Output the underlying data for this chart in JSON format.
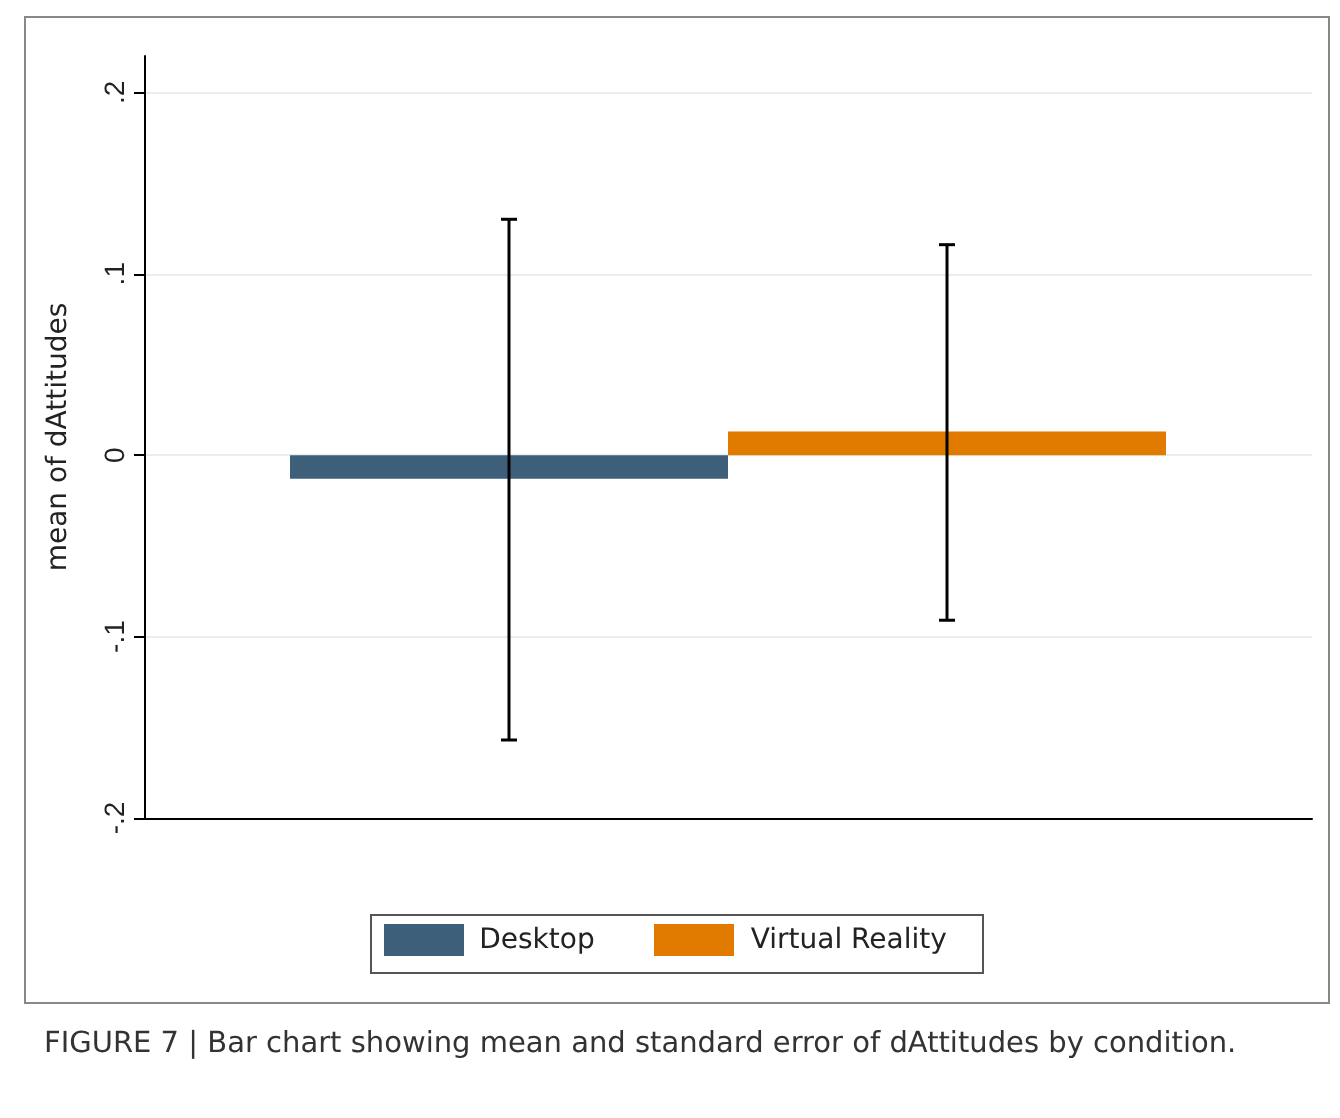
{
  "chart_data": {
    "type": "bar",
    "ylabel": "mean of dAttitudes",
    "categories": [
      null
    ],
    "series": [
      {
        "name": "Desktop",
        "color": "#3e5f7a",
        "values": [
          -0.013
        ],
        "errors": [
          [
            -0.157,
            0.13
          ]
        ]
      },
      {
        "name": "Virtual Reality",
        "color": "#e07b00",
        "values": [
          0.013
        ],
        "errors": [
          [
            -0.091,
            0.116
          ]
        ]
      }
    ],
    "ylim": [
      -0.2,
      0.22
    ],
    "yticks": [
      {
        "value": -0.2,
        "label": "-.2"
      },
      {
        "value": -0.1,
        "label": "-.1"
      },
      {
        "value": 0,
        "label": "0"
      },
      {
        "value": 0.1,
        "label": ".1"
      },
      {
        "value": 0.2,
        "label": ".2"
      }
    ],
    "grid": "y",
    "legend": "bottom",
    "tick_labels": "y",
    "annotations": [
      "FIGURE 7 | Bar chart showing mean and standard error of dAttitudes by condition."
    ]
  }
}
